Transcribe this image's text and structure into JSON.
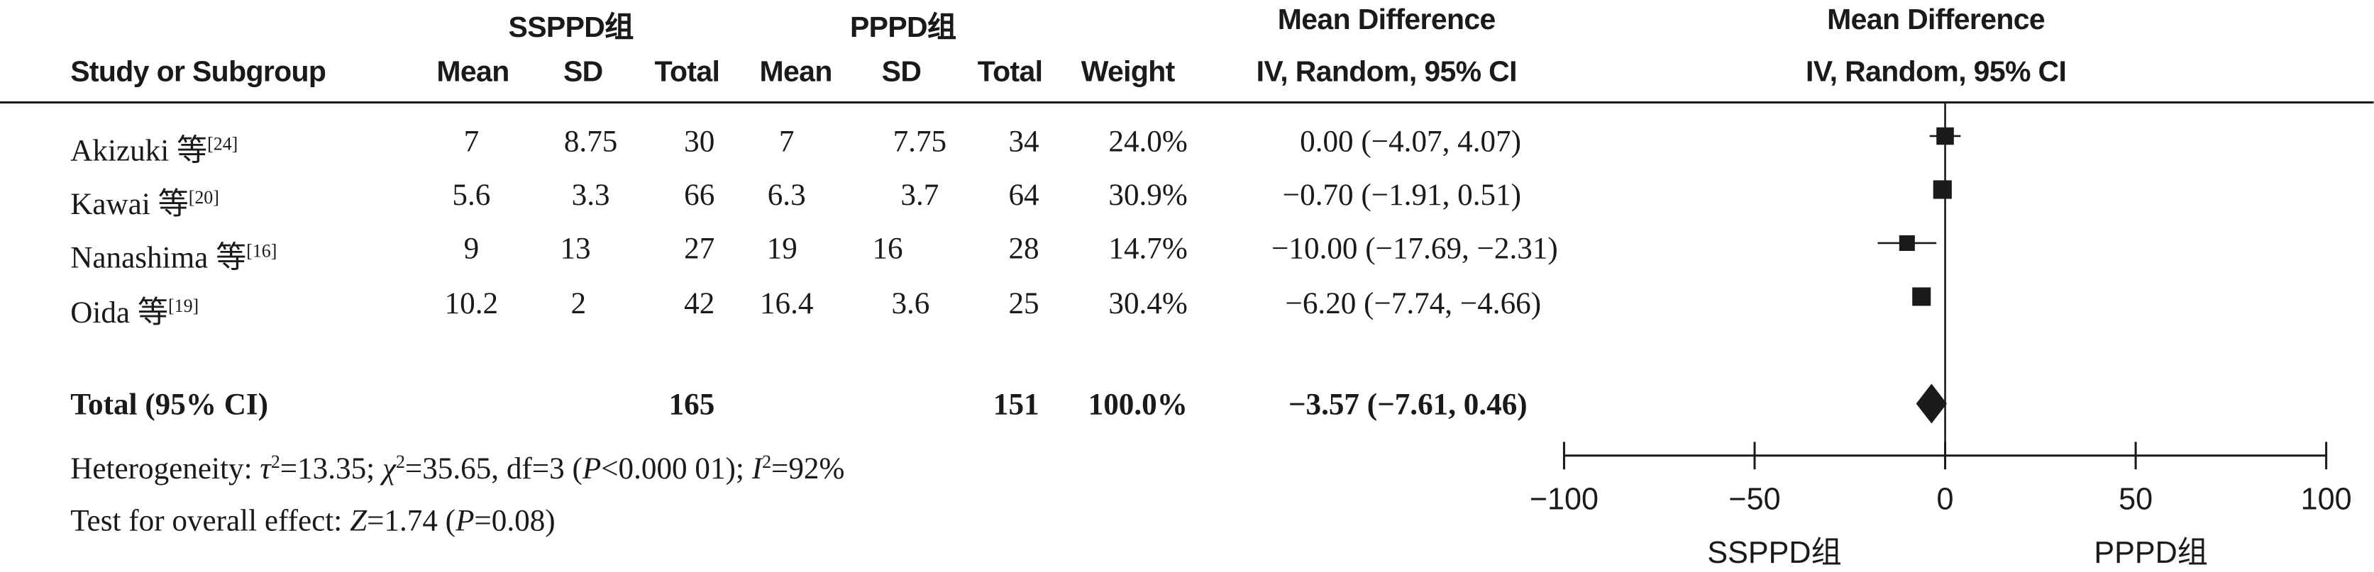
{
  "header": {
    "group1": "SSPPD组",
    "group2": "PPPD组",
    "md_title": "Mean Difference",
    "study_col": "Study or Subgroup",
    "mean": "Mean",
    "sd": "SD",
    "total": "Total",
    "weight": "Weight",
    "method": "IV, Random, 95% CI"
  },
  "rows": [
    {
      "study": "Akizuki 等",
      "ref": "[24]",
      "m1": "7",
      "sd1": "8.75",
      "n1": "30",
      "m2": "7",
      "sd2": "7.75",
      "n2": "34",
      "weight": "24.0%",
      "ci": "0.00 (−4.07, 4.07)"
    },
    {
      "study": "Kawai 等",
      "ref": "[20]",
      "m1": "5.6",
      "sd1": "3.3",
      "n1": "66",
      "m2": "6.3",
      "sd2": "3.7",
      "n2": "64",
      "weight": "30.9%",
      "ci": "−0.70 (−1.91, 0.51)"
    },
    {
      "study": "Nanashima 等",
      "ref": "[16]",
      "m1": "9",
      "sd1": "13",
      "n1": "27",
      "m2": "19",
      "sd2": "16",
      "n2": "28",
      "weight": "14.7%",
      "ci": "−10.00 (−17.69, −2.31)"
    },
    {
      "study": "Oida 等",
      "ref": "[19]",
      "m1": "10.2",
      "sd1": "2",
      "n1": "42",
      "m2": "16.4",
      "sd2": "3.6",
      "n2": "25",
      "weight": "30.4%",
      "ci": "−6.20 (−7.74, −4.66)"
    }
  ],
  "total": {
    "label": "Total (95% CI)",
    "n1": "165",
    "n2": "151",
    "weight": "100.0%",
    "ci": "−3.57 (−7.61, 0.46)"
  },
  "footer": {
    "het_prefix": "Heterogeneity: ",
    "tau": "τ",
    "tau_val": "=13.35; ",
    "chi": "χ",
    "chi_val": "=35.65, df=3 (",
    "p1": "P",
    "p1_val": "<0.000 01); ",
    "i2": "I",
    "i2_val": "=92%",
    "overall_prefix": "Test for overall effect: ",
    "z": "Z",
    "z_val": "=1.74 (",
    "p2": "P",
    "p2_val": "=0.08)",
    "sup2": "2"
  },
  "chart_data": {
    "type": "scatter",
    "title": "Mean Difference",
    "subtitle": "IV, Random, 95% CI",
    "xlim": [
      -100,
      100
    ],
    "xticks": [
      "−100",
      "−50",
      "0",
      "50",
      "100"
    ],
    "xtick_values": [
      -100,
      -50,
      0,
      50,
      100
    ],
    "left_label": "SSPPD组",
    "right_label": "PPPD组",
    "studies": [
      {
        "name": "Akizuki 等",
        "estimate": 0.0,
        "lower": -4.07,
        "upper": 4.07,
        "weight": 24.0
      },
      {
        "name": "Kawai 等",
        "estimate": -0.7,
        "lower": -1.91,
        "upper": 0.51,
        "weight": 30.9
      },
      {
        "name": "Nanashima 等",
        "estimate": -10.0,
        "lower": -17.69,
        "upper": -2.31,
        "weight": 14.7
      },
      {
        "name": "Oida 等",
        "estimate": -6.2,
        "lower": -7.74,
        "upper": -4.66,
        "weight": 30.4
      }
    ],
    "pooled": {
      "name": "Total (95% CI)",
      "estimate": -3.57,
      "lower": -7.61,
      "upper": 0.46
    }
  }
}
